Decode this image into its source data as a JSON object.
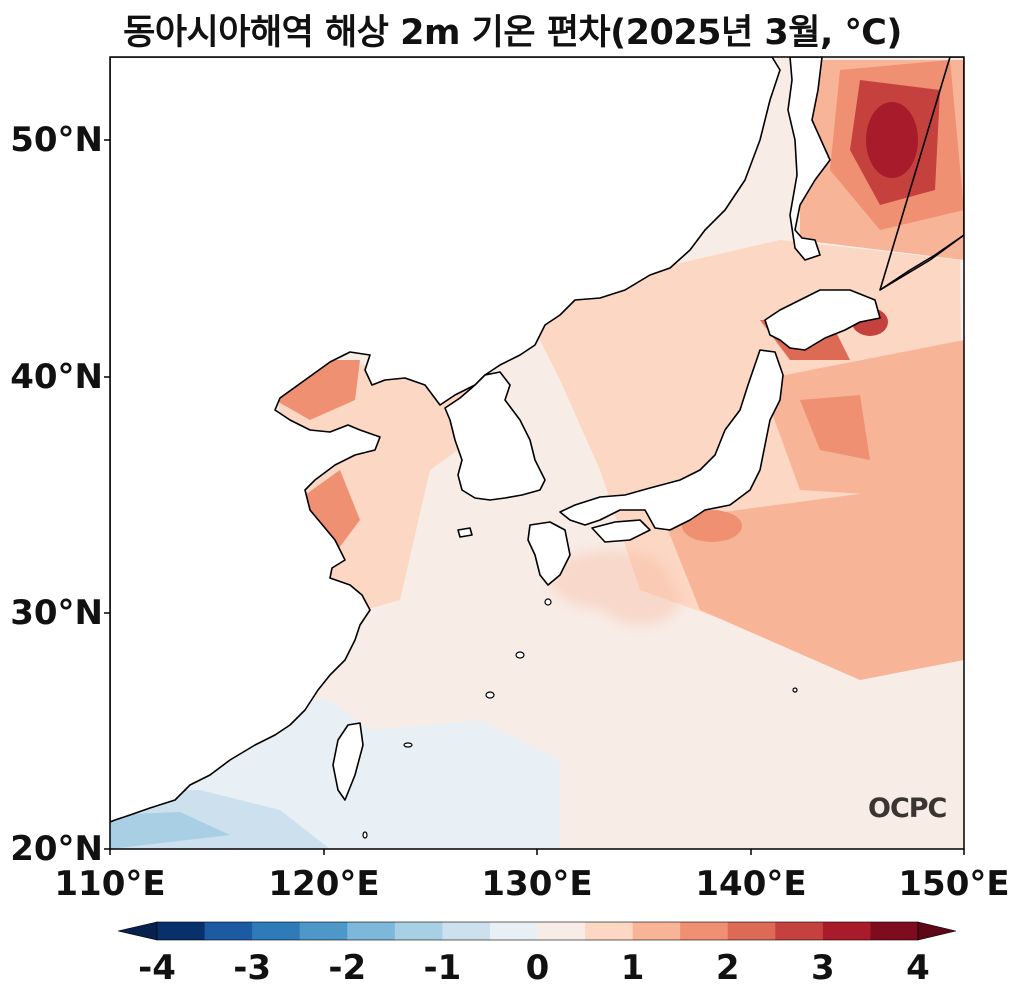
{
  "title": "동아시아해역 해상 2m 기온 편차(2025년 3월, ℃)",
  "axes": {
    "lat_ticks": [
      "50°N",
      "40°N",
      "30°N",
      "20°N"
    ],
    "lon_ticks": [
      "110°E",
      "120°E",
      "130°E",
      "140°E",
      "150°E"
    ],
    "lat_range": [
      20,
      53.5
    ],
    "lon_range": [
      110,
      150
    ]
  },
  "colorbar": {
    "tick_labels": [
      "-4",
      "-3",
      "-2",
      "-1",
      "0",
      "1",
      "2",
      "3",
      "4"
    ],
    "range": [
      -4,
      4
    ],
    "step": 0.5,
    "extend": "both",
    "colors": [
      "#08306b",
      "#1c5aa3",
      "#2f7ab8",
      "#4d98c9",
      "#7db8da",
      "#a8cfe4",
      "#cce0ee",
      "#e8f0f6",
      "#f8ece6",
      "#fcd7c4",
      "#f7b497",
      "#ef9072",
      "#dc6a55",
      "#c4413d",
      "#a71b2a",
      "#7f0b1f"
    ],
    "extend_low_color": "#062050",
    "extend_high_color": "#5e0716"
  },
  "map": {
    "land_color": "#ffffff",
    "coast_color": "#000000",
    "field_description_colors": {
      "ocean_base": "#f8ece6"
    }
  },
  "logo": "OCPC"
}
